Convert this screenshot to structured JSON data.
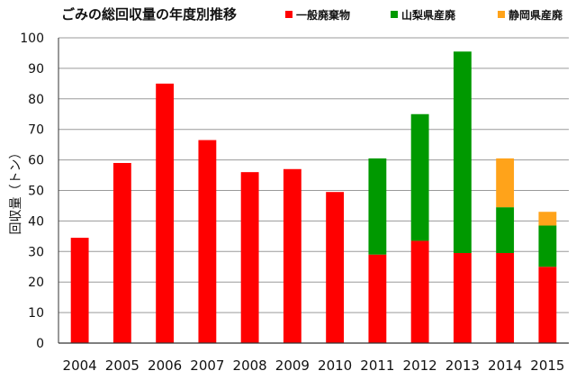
{
  "chart_data": {
    "type": "bar",
    "stacked": true,
    "title": "ごみの総回収量の年度別推移",
    "ylabel": "回収量（トン）",
    "xlabel": "",
    "ylim": [
      0,
      100
    ],
    "yticks": [
      0,
      10,
      20,
      30,
      40,
      50,
      60,
      70,
      80,
      90,
      100
    ],
    "grid": true,
    "legend_position": "top",
    "categories": [
      "2004",
      "2005",
      "2006",
      "2007",
      "2008",
      "2009",
      "2010",
      "2011",
      "2012",
      "2013",
      "2014",
      "2015"
    ],
    "series": [
      {
        "name": "一般廃棄物",
        "color": "#ff0000",
        "values": [
          34.5,
          59,
          85,
          66.5,
          56,
          57,
          49.5,
          29,
          33.5,
          29.5,
          29.5,
          25
        ]
      },
      {
        "name": "山梨県産廃",
        "color": "#009900",
        "values": [
          0,
          0,
          0,
          0,
          0,
          0,
          0,
          31.5,
          41.5,
          66,
          15,
          13.5
        ]
      },
      {
        "name": "静岡県産廃",
        "color": "#ffa31a",
        "values": [
          0,
          0,
          0,
          0,
          0,
          0,
          0,
          0,
          0,
          0,
          16,
          4.5
        ]
      }
    ]
  }
}
